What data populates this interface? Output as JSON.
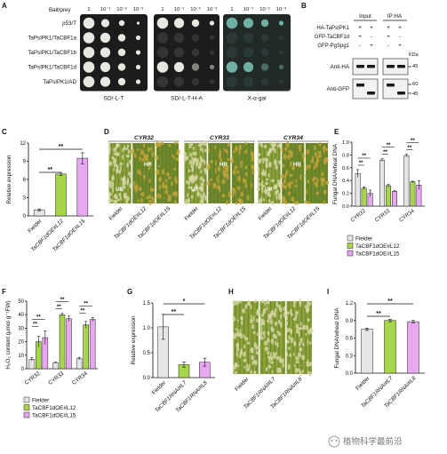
{
  "panelA": {
    "letter": "A",
    "header_label": "Bait/prey",
    "dilutions": [
      "1",
      "10⁻¹",
      "10⁻²",
      "10⁻³"
    ],
    "rows": [
      "p53/T",
      "TaPsIPK1/TaCBF1a",
      "TaPsIPK1/TaCBF1b",
      "TaPsIPK1/TaCBF1d",
      "TaPsIPK1/AD"
    ],
    "plates": [
      "SD/-L-T",
      "SD/-L-T-H-A",
      "X-α-gal"
    ],
    "colors": {
      "white_colony": "#e8e8e0",
      "blue_colony": "#6fb0a4",
      "plate_bg": "#1c1c1c"
    }
  },
  "panelB": {
    "letter": "B",
    "input_label": "Input",
    "ip_label": "IP:HA",
    "rows": [
      {
        "label": "HA-TaPsIPK1",
        "signs": [
          "+",
          "+",
          "+",
          "+"
        ]
      },
      {
        "label": "GFP-TaCBF1d",
        "signs": [
          "+",
          "-",
          "+",
          "-"
        ]
      },
      {
        "label": "GFP-PgSpg1",
        "signs": [
          "-",
          "+",
          "-",
          "+"
        ]
      }
    ],
    "kda_label": "KDa",
    "blots": [
      {
        "label": "Anti-HA",
        "markers": [
          "45"
        ]
      },
      {
        "label": "Anti-GFP",
        "markers": [
          "60",
          "45"
        ]
      }
    ]
  },
  "panelC": {
    "letter": "C",
    "chart_data": {
      "type": "bar",
      "ylabel": "Relative expression",
      "categories": [
        "Fielder",
        "TaCBF1dOE#L12",
        "TaCBF1dOE#L15"
      ],
      "values": [
        1,
        6.9,
        9.5
      ],
      "errors": [
        0.15,
        0.25,
        0.9
      ],
      "ylim": [
        0,
        12
      ],
      "yticks": [
        "0",
        "3",
        "6",
        "9",
        "12"
      ],
      "significance": [
        "**",
        "**"
      ],
      "colors": [
        "#e6e6e6",
        "#a8d64a",
        "#e8a8f0"
      ]
    }
  },
  "panelD": {
    "letter": "D",
    "groups": [
      "CYR32",
      "CYR33",
      "CYR34"
    ],
    "leaf_labels": [
      "Fielder",
      "TaCBF1dOE#L12",
      "TaCBF1dOE#L15"
    ],
    "annotations": {
      "ur": "UR",
      "hr": "HR"
    }
  },
  "panelE": {
    "letter": "E",
    "chart_data": {
      "type": "bar",
      "ylabel": "Fungal DNA/wheat DNA",
      "categories": [
        "CYR32",
        "CYR33",
        "CYR34"
      ],
      "series": [
        {
          "name": "Fielder",
          "values": [
            0.51,
            0.72,
            0.79
          ],
          "errors": [
            0.06,
            0.02,
            0.02
          ]
        },
        {
          "name": "TaCBF1dOE#L12",
          "values": [
            0.28,
            0.32,
            0.38
          ],
          "errors": [
            0.02,
            0.02,
            0.01
          ]
        },
        {
          "name": "TaCBF1dOE#L15",
          "values": [
            0.2,
            0.23,
            0.33
          ],
          "errors": [
            0.05,
            0.01,
            0.07
          ]
        }
      ],
      "ylim": [
        0,
        1
      ],
      "yticks": [
        "0.0",
        "0.2",
        "0.4",
        "0.6",
        "0.8",
        "1.0"
      ],
      "significance": "**",
      "legend_placement": "bottom",
      "colors": [
        "#e6e6e6",
        "#a8d64a",
        "#e8a8f0"
      ]
    }
  },
  "panelF": {
    "letter": "F",
    "chart_data": {
      "type": "bar",
      "ylabel": "H₂O₂ content (μmol·g⁻¹FW)",
      "categories": [
        "CYR32",
        "CYR33",
        "CYR34"
      ],
      "series": [
        {
          "name": "Fielder",
          "values": [
            7,
            4.5,
            7.5
          ],
          "errors": [
            1.2,
            0.4,
            1
          ]
        },
        {
          "name": "TaCBF1dOE#L12",
          "values": [
            20,
            40,
            32.5
          ],
          "errors": [
            4,
            1,
            2.5
          ]
        },
        {
          "name": "TaCBF1dOE#L15",
          "values": [
            23,
            37,
            36.5
          ],
          "errors": [
            5,
            2,
            1.5
          ]
        }
      ],
      "ylim": [
        0,
        50
      ],
      "yticks": [
        "0",
        "10",
        "20",
        "30",
        "40",
        "50"
      ],
      "significance": "**",
      "legend_placement": "bottom",
      "colors": [
        "#e6e6e6",
        "#a8d64a",
        "#e8a8f0"
      ]
    }
  },
  "panelG": {
    "letter": "G",
    "chart_data": {
      "type": "bar",
      "ylabel": "Relative expression",
      "categories": [
        "Fielder",
        "TaCBF1RNAi#L7",
        "TaCBF1RNAi#L8"
      ],
      "values": [
        1.02,
        0.26,
        0.31
      ],
      "errors": [
        0.25,
        0.05,
        0.08
      ],
      "ylim": [
        0,
        1.5
      ],
      "yticks": [
        "0.0",
        "0.5",
        "1.0",
        "1.5"
      ],
      "significance": [
        "*",
        "**"
      ],
      "colors": [
        "#e6e6e6",
        "#a8d64a",
        "#e8a8f0"
      ]
    }
  },
  "panelH": {
    "letter": "H",
    "leaf_labels": [
      "Fielder",
      "TaCBF1RNAi#L7",
      "TaCBF1RNAi#L8"
    ]
  },
  "panelI": {
    "letter": "I",
    "chart_data": {
      "type": "bar",
      "ylabel": "Fungal DNA/wheat DNA",
      "categories": [
        "Fielder",
        "TaCBF1RNAi#L7",
        "TaCBF1RNAi#L8"
      ],
      "values": [
        0.75,
        0.9,
        0.88
      ],
      "errors": [
        0.02,
        0.02,
        0.02
      ],
      "ylim": [
        0,
        1.2
      ],
      "yticks": [
        "0.0",
        "0.3",
        "0.6",
        "0.9",
        "1.2"
      ],
      "significance": [
        "**",
        "**"
      ],
      "colors": [
        "#e6e6e6",
        "#a8d64a",
        "#e8a8f0"
      ]
    }
  },
  "watermark": {
    "text": "植物科学最前沿"
  }
}
